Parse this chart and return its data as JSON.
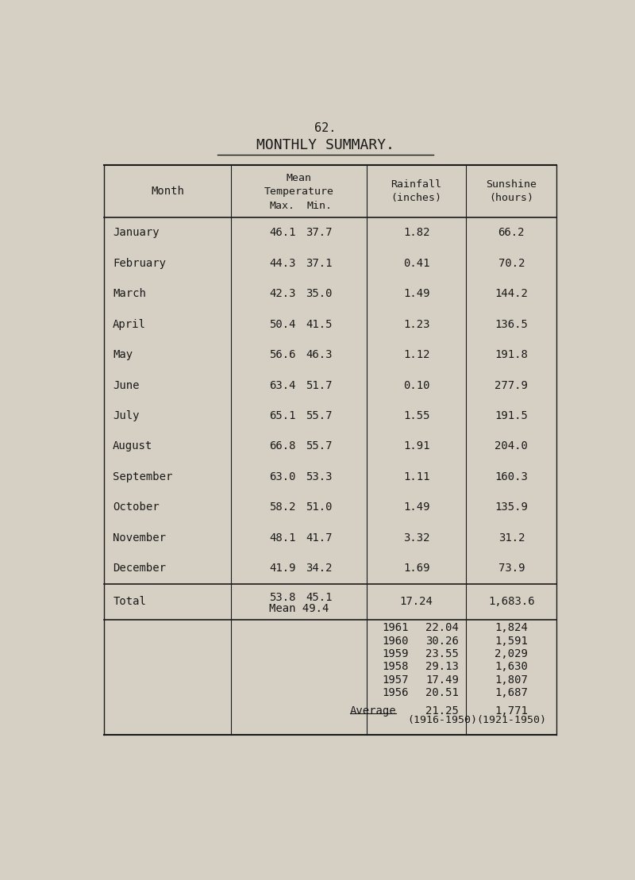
{
  "page_number": "62.",
  "title": "MONTHLY SUMMARY.",
  "bg_color": "#d6d0c4",
  "text_color": "#1a1a1a",
  "months": [
    "January",
    "February",
    "March",
    "April",
    "May",
    "June",
    "July",
    "August",
    "September",
    "October",
    "November",
    "December"
  ],
  "temp_max": [
    "46.1",
    "44.3",
    "42.3",
    "50.4",
    "56.6",
    "63.4",
    "65.1",
    "66.8",
    "63.0",
    "58.2",
    "48.1",
    "41.9"
  ],
  "temp_min": [
    "37.7",
    "37.1",
    "35.0",
    "41.5",
    "46.3",
    "51.7",
    "55.7",
    "55.7",
    "53.3",
    "51.0",
    "41.7",
    "34.2"
  ],
  "rainfall": [
    "1.82",
    "0.41",
    "1.49",
    "1.23",
    "1.12",
    "0.10",
    "1.55",
    "1.91",
    "1.11",
    "1.49",
    "3.32",
    "1.69"
  ],
  "sunshine": [
    "66.2",
    "70.2",
    "144.2",
    "136.5",
    "191.8",
    "277.9",
    "191.5",
    "204.0",
    "160.3",
    "135.9",
    "31.2",
    "73.9"
  ],
  "total_max": "53.8",
  "total_min": "45.1",
  "total_mean": "49.4",
  "total_rainfall": "17.24",
  "total_sunshine": "1,683.6",
  "historical_years": [
    "1961",
    "1960",
    "1959",
    "1958",
    "1957",
    "1956"
  ],
  "historical_rainfall": [
    "22.04",
    "30.26",
    "23.55",
    "29.13",
    "17.49",
    "20.51"
  ],
  "historical_sunshine": [
    "1,824",
    "1,591",
    "2,029",
    "1,630",
    "1,807",
    "1,687"
  ],
  "average_label": "Average",
  "average_rainfall": "21.25",
  "average_rainfall_period": "(1916-1950)",
  "average_sunshine": "1,771",
  "average_sunshine_period": "(1921-1950)"
}
